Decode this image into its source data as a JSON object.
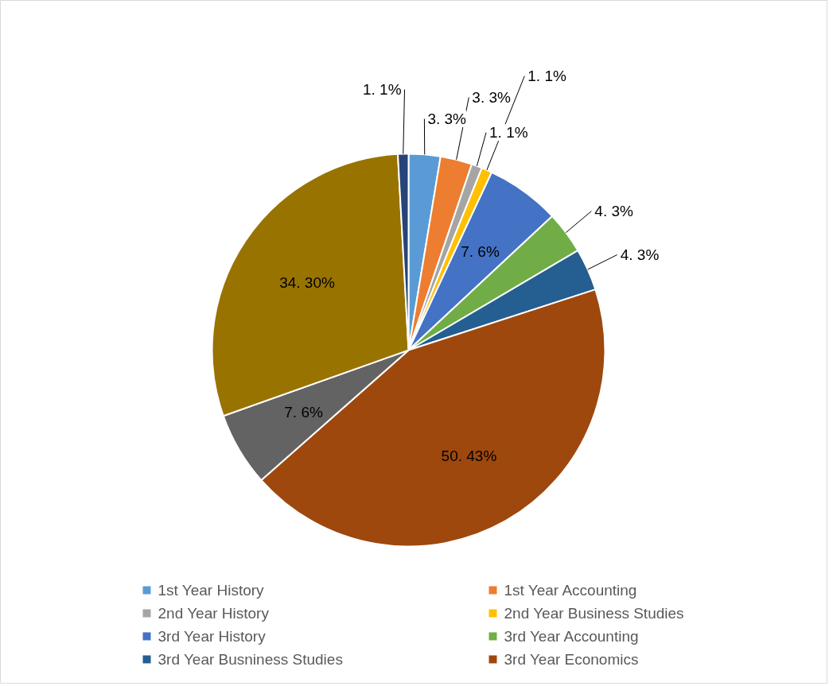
{
  "chart_data": {
    "type": "pie",
    "categories": [
      "1st Year History",
      "1st Year Accounting",
      "2nd Year History",
      "2nd Year Business Studies",
      "3rd Year History",
      "3rd Year Accounting",
      "3rd Year Busniness Studies",
      "3rd Year Economics",
      null,
      null,
      null
    ],
    "values": [
      3,
      3,
      1,
      1,
      7,
      4,
      4,
      50,
      7,
      34,
      1
    ],
    "value_labels": [
      "3. 3%",
      "3. 3%",
      "1. 1%",
      "1. 1%",
      "7. 6%",
      "4. 3%",
      "4. 3%",
      "50. 43%",
      "7. 6%",
      "34. 30%",
      "1. 1%"
    ],
    "colors": [
      "#5b9bd5",
      "#ed7d31",
      "#a5a5a5",
      "#ffc000",
      "#4472c4",
      "#70ad47",
      "#255e91",
      "#9e480e",
      "#636363",
      "#997300",
      "#264478"
    ],
    "legend": "bottom"
  }
}
